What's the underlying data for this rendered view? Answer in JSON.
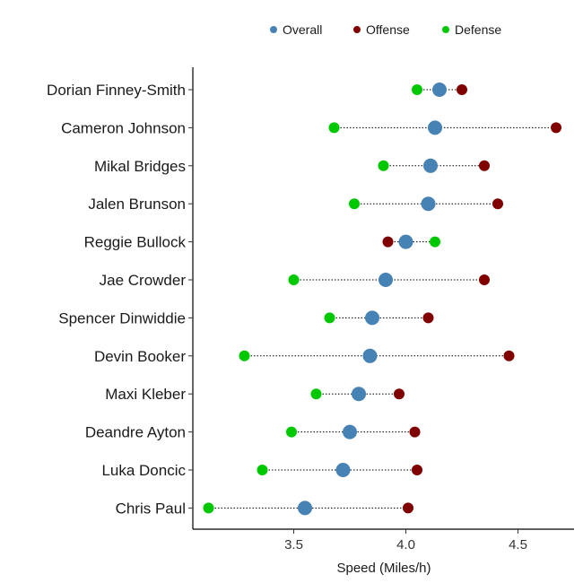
{
  "chart_data": {
    "type": "scatter",
    "title": "",
    "xlabel": "Speed (Miles/h)",
    "ylabel": "",
    "xlim": [
      3.05,
      4.72
    ],
    "x_ticks": [
      "3.5",
      "4.0",
      "4.5"
    ],
    "x_tick_values": [
      3.5,
      4.0,
      4.5
    ],
    "grid": false,
    "legend_position": "top",
    "categories": [
      "Dorian Finney-Smith",
      "Cameron Johnson",
      "Mikal Bridges",
      "Jalen Brunson",
      "Reggie Bullock",
      "Jae Crowder",
      "Spencer Dinwiddie",
      "Devin Booker",
      "Maxi Kleber",
      "Deandre Ayton",
      "Luka Doncic",
      "Chris Paul"
    ],
    "series": [
      {
        "name": "Overall",
        "color": "#4682b4",
        "values": [
          4.15,
          4.13,
          4.11,
          4.1,
          4.0,
          3.91,
          3.85,
          3.84,
          3.79,
          3.75,
          3.72,
          3.55
        ]
      },
      {
        "name": "Offense",
        "color": "#800000",
        "values": [
          4.25,
          4.67,
          4.35,
          4.41,
          3.92,
          4.35,
          4.1,
          4.46,
          3.97,
          4.04,
          4.05,
          4.01
        ]
      },
      {
        "name": "Defense",
        "color": "#00c800",
        "values": [
          4.05,
          3.68,
          3.9,
          3.77,
          4.13,
          3.5,
          3.66,
          3.28,
          3.6,
          3.49,
          3.36,
          3.12
        ]
      }
    ]
  }
}
